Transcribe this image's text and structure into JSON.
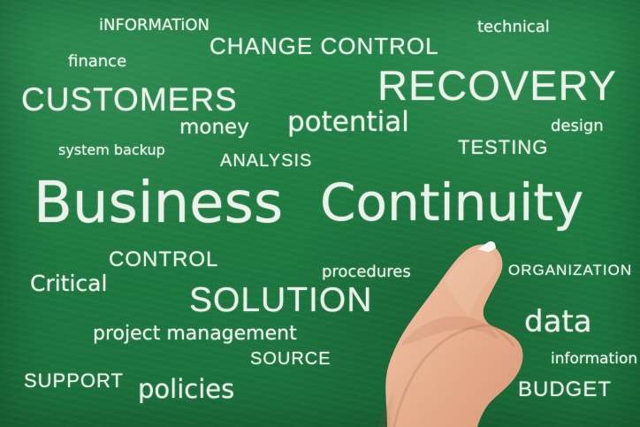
{
  "scene": {
    "words": [
      "iNFORMATiON",
      "CHANGE CONTROL",
      "technical",
      "finance",
      "CUSTOMERS",
      "RECOVERY",
      "money",
      "potential",
      "design",
      "system backup",
      "ANALYSIS",
      "TESTING",
      "Business",
      "Continuity",
      "CONTROL",
      "procedures",
      "ORGANIZATION",
      "Critical",
      "SOLUTION",
      "project management",
      "data",
      "SOURCE",
      "information",
      "SUPPORT",
      "policies",
      "BUDGET"
    ],
    "colors": {
      "chalkboard": "#1f7c42",
      "chalk": "#f3f7f1",
      "skin": "#e7b08f"
    },
    "icons": {
      "hand": "hand-with-chalk-icon"
    }
  }
}
